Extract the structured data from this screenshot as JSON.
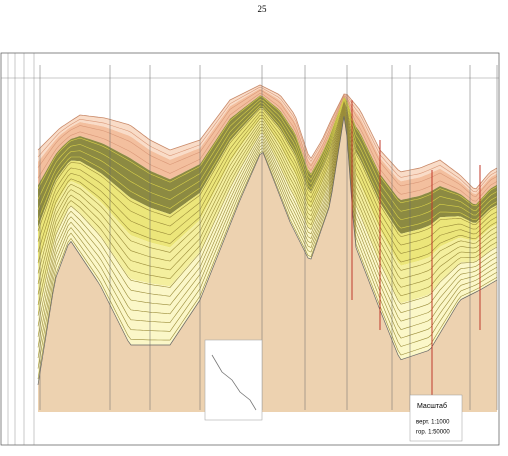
{
  "page_number": "25",
  "scale": {
    "title": "Масштаб",
    "vertical": "верт. 1:1000",
    "horizontal": "гор. 1:50000"
  }
}
